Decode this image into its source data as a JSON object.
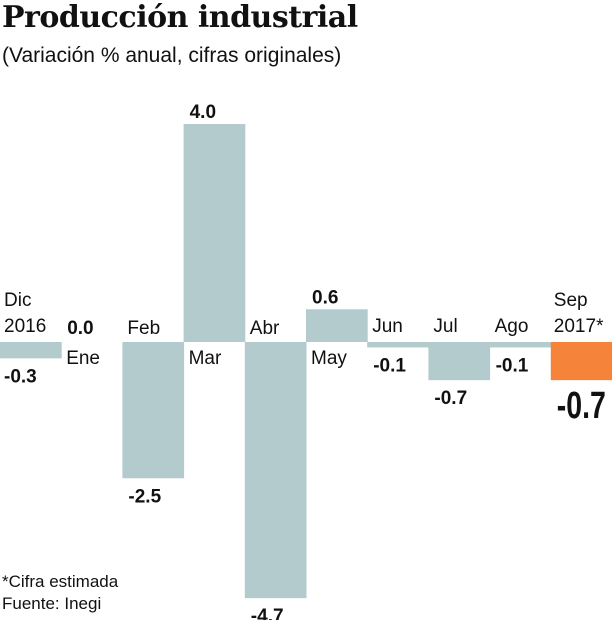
{
  "chart_data": {
    "type": "bar",
    "title": "Producción industrial",
    "subtitle": "(Variación % anual, cifras originales)",
    "categories": [
      "Dic 2016",
      "Ene",
      "Feb",
      "Mar",
      "Abr",
      "May",
      "Jun",
      "Jul",
      "Ago",
      "Sep 2017*"
    ],
    "category_lines": [
      [
        "Dic",
        "2016"
      ],
      [
        "Ene"
      ],
      [
        "Feb"
      ],
      [
        "Mar"
      ],
      [
        "Abr"
      ],
      [
        "May"
      ],
      [
        "Jun"
      ],
      [
        "Jul"
      ],
      [
        "Ago"
      ],
      [
        "Sep",
        "2017*"
      ]
    ],
    "values": [
      -0.3,
      0.0,
      -2.5,
      4.0,
      -4.7,
      0.6,
      -0.1,
      -0.7,
      -0.1,
      -0.7
    ],
    "value_labels": [
      "-0.3",
      "0.0",
      "-2.5",
      "4.0",
      "-4.7",
      "0.6",
      "-0.1",
      "-0.7",
      "-0.1",
      "-0.7"
    ],
    "highlight_index": 9,
    "colors": {
      "bar": "#b3cbcc",
      "highlight": "#f5843a"
    },
    "ylim": [
      -4.7,
      4.0
    ],
    "grid": false,
    "footnotes": [
      "*Cifra estimada",
      "Fuente: Inegi"
    ]
  }
}
